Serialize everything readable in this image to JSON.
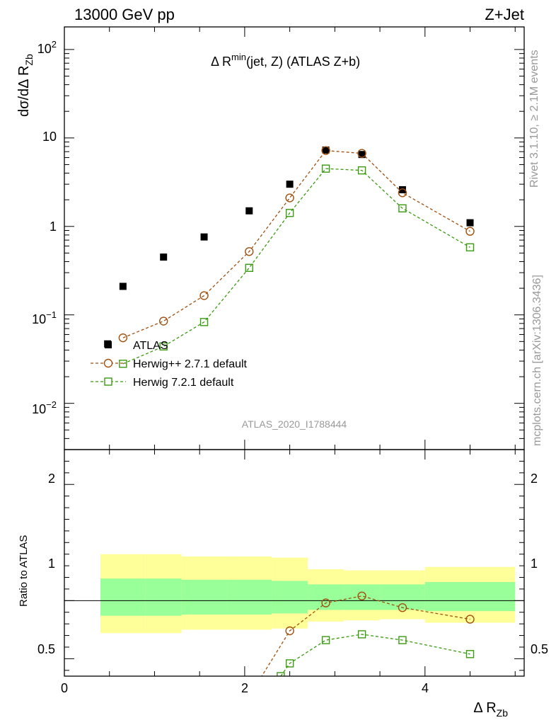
{
  "header": {
    "left": "13000 GeV pp",
    "right": "Z+Jet"
  },
  "side": {
    "rivet": "Rivet 3.1.10, ≥ 2.1M events",
    "mcplots": "mcplots.cern.ch [arXiv:1306.3436]"
  },
  "analysis_id": "ATLAS_2020_I1788444",
  "chart_data": [
    {
      "type": "scatter",
      "panel": "main",
      "title": "Δ R^min(jet, Z) (ATLAS Z+b)",
      "title_parts": {
        "delta": "Δ R",
        "sup": "min",
        "rest": "(jet, Z) (ATLAS Z+b)"
      },
      "ylabel_parts": {
        "main": "dσ/dΔ R",
        "sub": "Zb"
      },
      "xlabel_parts": {
        "main": "Δ R",
        "sub": "Zb"
      },
      "yscale": "log",
      "ylim": [
        0.003,
        180
      ],
      "xlim": [
        0,
        5.1
      ],
      "y_tick_labels": {
        "e-2": "10",
        "e-2sup": "−2",
        "e-1": "10",
        "e-1sup": "−1",
        "one": "1",
        "ten": "10",
        "e2": "10",
        "e2sup": "2"
      },
      "legend_position": "bottom-left",
      "series": [
        {
          "name": "ATLAS",
          "color": "#000000",
          "marker": "filled-square",
          "x": [
            0.48,
            0.65,
            1.1,
            1.55,
            2.05,
            2.5,
            2.9,
            3.3,
            3.75,
            4.5
          ],
          "y": [
            0.047,
            0.21,
            0.45,
            0.76,
            1.5,
            3.0,
            7.3,
            6.5,
            2.6,
            1.1
          ]
        },
        {
          "name": "Herwig++ 2.7.1 default",
          "color": "#a05010",
          "marker": "open-circle",
          "x": [
            0.65,
            1.1,
            1.55,
            2.05,
            2.5,
            2.9,
            3.3,
            3.75,
            4.5
          ],
          "y": [
            0.055,
            0.085,
            0.165,
            0.52,
            2.1,
            7.2,
            6.7,
            2.4,
            0.88
          ]
        },
        {
          "name": "Herwig 7.2.1 default",
          "color": "#3a9a10",
          "marker": "open-square",
          "x": [
            0.65,
            1.1,
            1.55,
            2.05,
            2.5,
            2.9,
            3.3,
            3.75,
            4.5
          ],
          "y": [
            0.028,
            0.044,
            0.083,
            0.34,
            1.42,
            4.5,
            4.3,
            1.6,
            0.58
          ]
        }
      ]
    },
    {
      "type": "line",
      "panel": "ratio",
      "ylabel": "Ratio to ATLAS",
      "ylim": [
        0.35,
        2.3
      ],
      "xlim": [
        0,
        5.1
      ],
      "x_tick_labels": [
        "0",
        "2",
        "4"
      ],
      "y_tick_labels": [
        "0.5",
        "1",
        "2"
      ],
      "bands": {
        "bin_edges": [
          0.4,
          0.9,
          1.3,
          1.8,
          2.3,
          2.7,
          3.1,
          3.5,
          4.0,
          5.0
        ],
        "yellow_lo": [
          0.72,
          0.72,
          0.75,
          0.75,
          0.76,
          0.82,
          0.83,
          0.84,
          0.81
        ],
        "yellow_hi": [
          1.4,
          1.4,
          1.38,
          1.38,
          1.37,
          1.27,
          1.26,
          1.26,
          1.29
        ],
        "green_lo": [
          0.87,
          0.87,
          0.88,
          0.88,
          0.89,
          0.92,
          0.92,
          0.92,
          0.91
        ],
        "green_hi": [
          1.19,
          1.19,
          1.18,
          1.18,
          1.17,
          1.14,
          1.14,
          1.14,
          1.16
        ]
      },
      "series": [
        {
          "name": "Herwig++ 2.7.1 default",
          "color": "#a05010",
          "marker": "open-circle",
          "x": [
            2.15,
            2.5,
            2.9,
            3.3,
            3.75,
            4.5
          ],
          "y": [
            0.3,
            0.74,
            0.98,
            1.04,
            0.94,
            0.84
          ]
        },
        {
          "name": "Herwig 7.2.1 default",
          "color": "#3a9a10",
          "marker": "open-square",
          "x": [
            2.4,
            2.5,
            2.9,
            3.3,
            3.75,
            4.5
          ],
          "y": [
            0.35,
            0.46,
            0.66,
            0.71,
            0.66,
            0.54
          ]
        }
      ]
    }
  ]
}
